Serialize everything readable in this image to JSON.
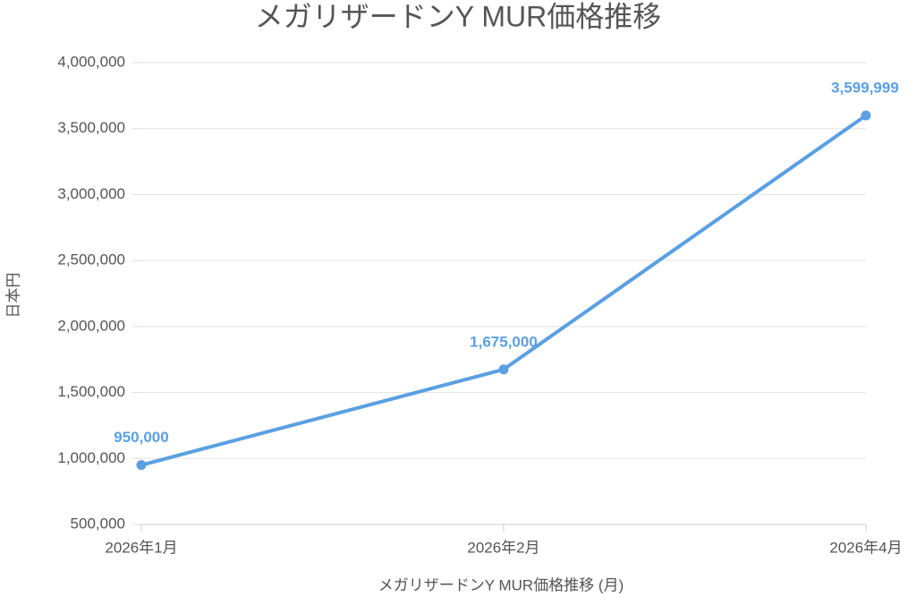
{
  "chart_data": {
    "type": "line",
    "title": "メガリザードンY MUR価格推移",
    "x_label": "メガリザードンY MUR価格推移 (月)",
    "y_label": "日本円",
    "categories": [
      "2026年1月",
      "2026年2月",
      "2026年4月"
    ],
    "series": [
      {
        "name": "メガリザードンY MUR",
        "color": "#5aa0e2",
        "values": [
          950000,
          1675000,
          3599999
        ],
        "value_labels": [
          "950,000",
          "1,675,000",
          "3,599,999"
        ]
      }
    ],
    "ylim": [
      500000,
      4000000
    ],
    "yticks": [
      {
        "value": 500000,
        "label": "500,000"
      },
      {
        "value": 1000000,
        "label": "1,000,000"
      },
      {
        "value": 1500000,
        "label": "1,500,000"
      },
      {
        "value": 2000000,
        "label": "2,000,000"
      },
      {
        "value": 2500000,
        "label": "2,500,000"
      },
      {
        "value": 3000000,
        "label": "3,000,000"
      },
      {
        "value": 3500000,
        "label": "3,500,000"
      },
      {
        "value": 4000000,
        "label": "4,000,000"
      }
    ],
    "grid": true,
    "legend": false
  }
}
